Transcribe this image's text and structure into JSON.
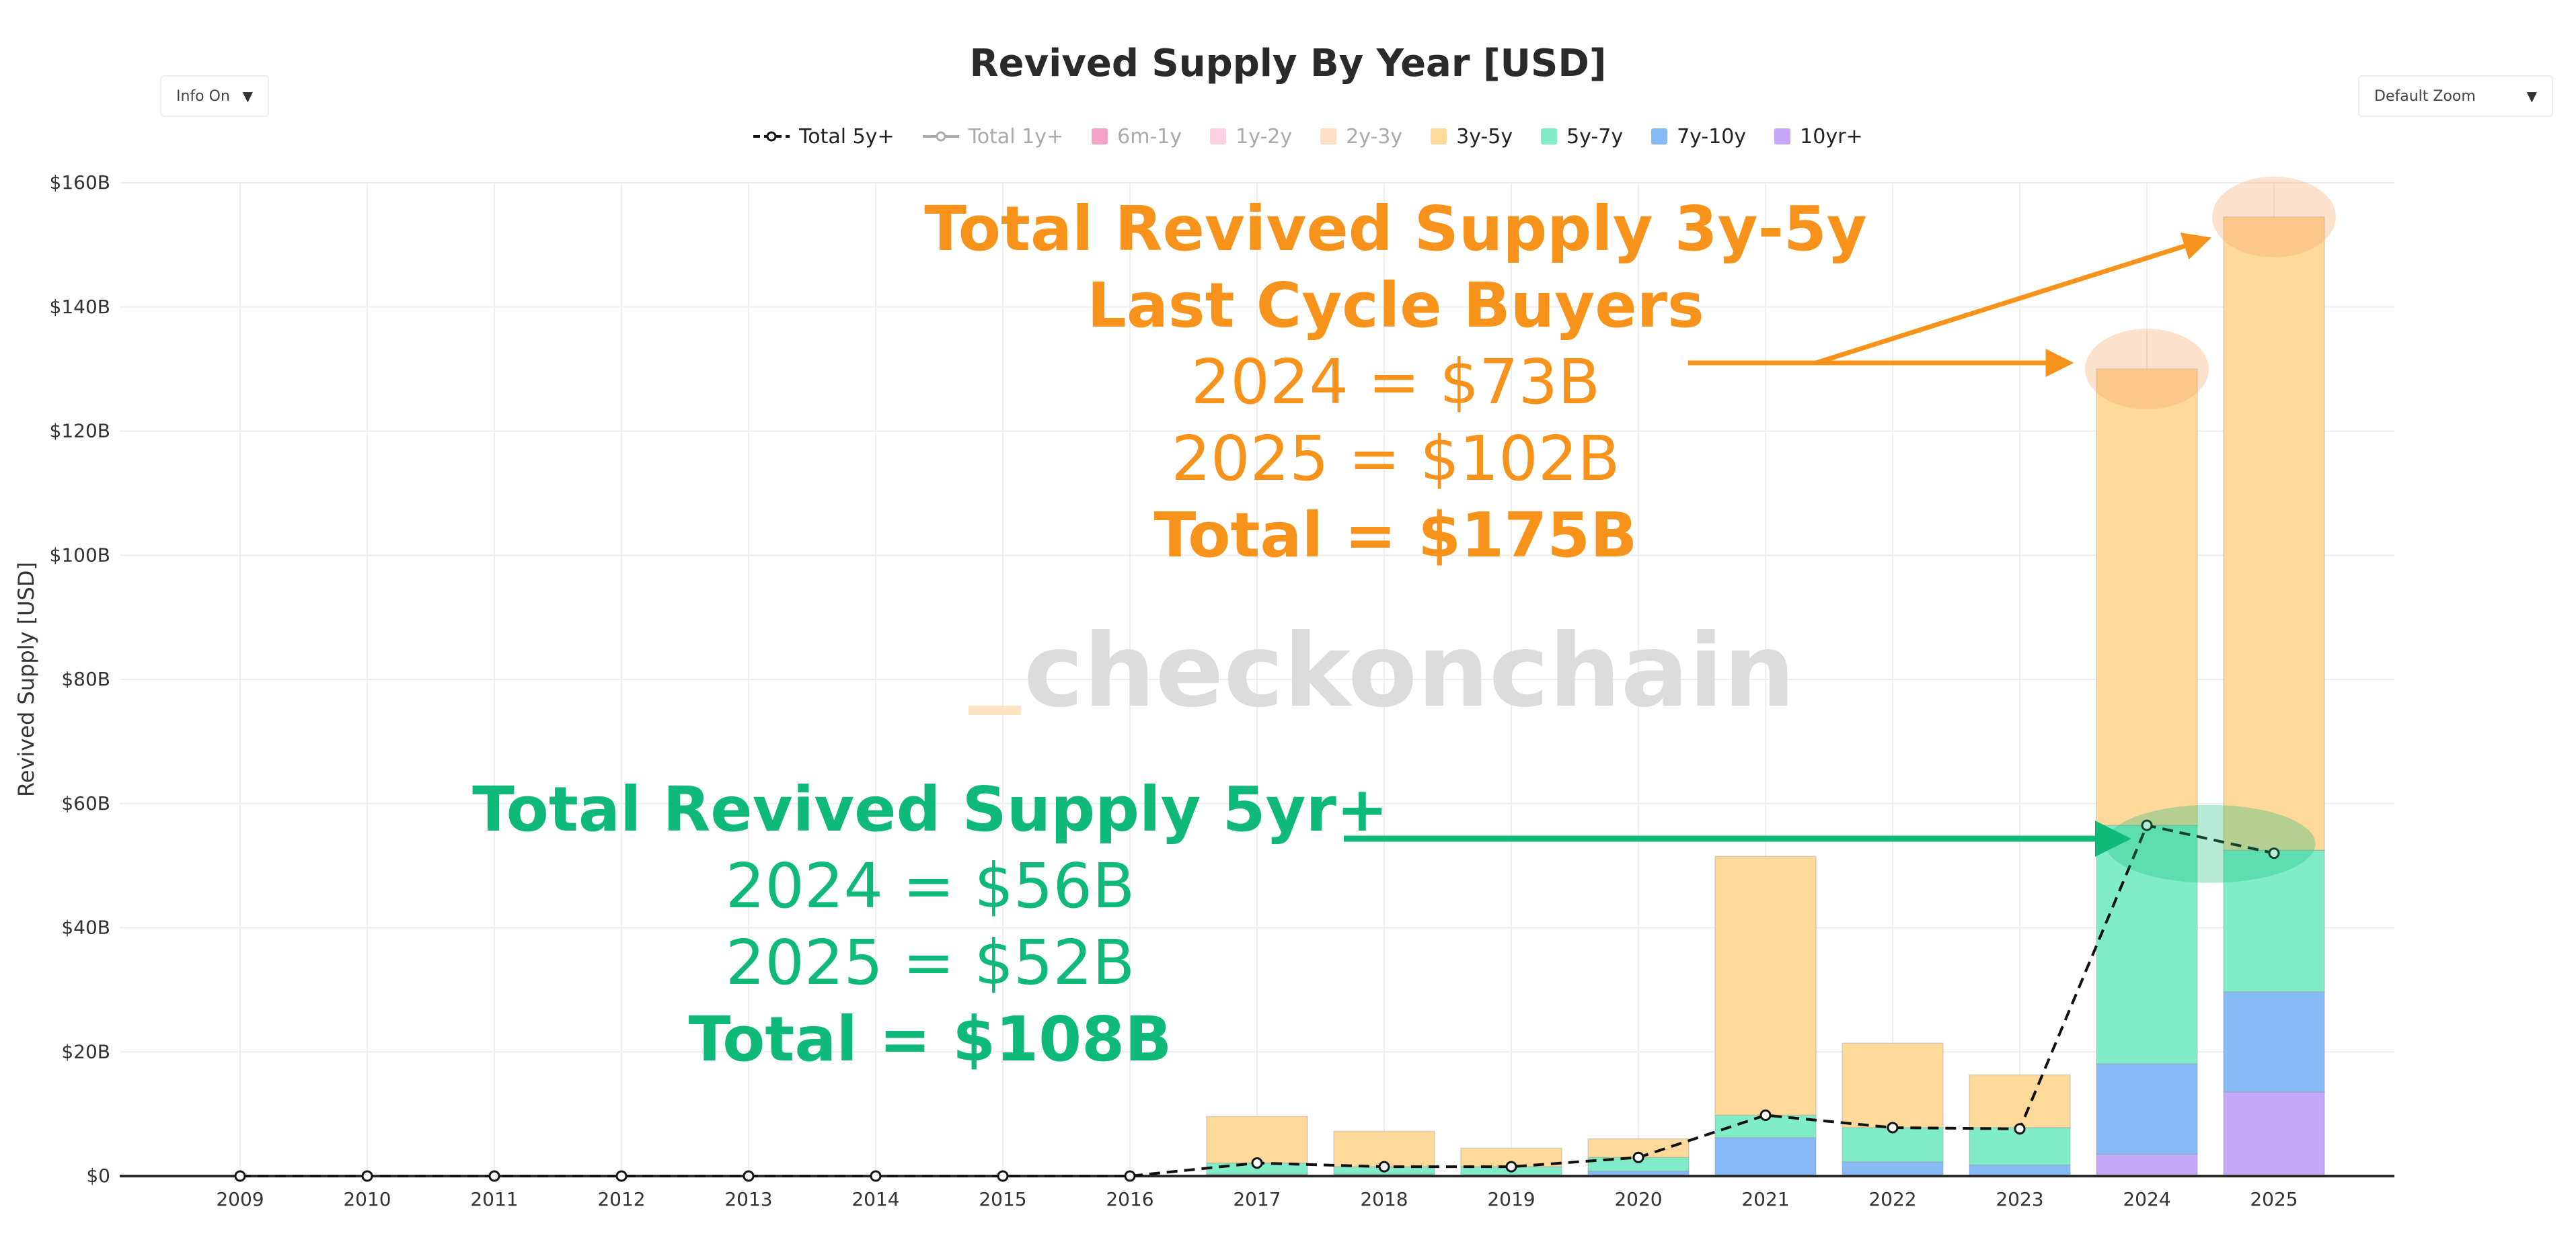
{
  "controls": {
    "info_label": "Info On",
    "zoom_label": "Default Zoom"
  },
  "colors": {
    "axis": "#2a2a2a",
    "grid": "#eeeeee",
    "orange": "#f7931a",
    "green": "#0fb97a",
    "watermark": "#dcdcdc",
    "watermark_accent": "#fde5c4"
  },
  "watermark": {
    "text": "checkonchain",
    "prefix": "_"
  },
  "annotations": {
    "orange": {
      "title1": "Total Revived Supply 3y-5y",
      "title2": "Last Cycle Buyers",
      "line1": "2024 = $73B",
      "line2": "2025 = $102B",
      "total": "Total = $175B"
    },
    "green": {
      "title": "Total Revived Supply 5yr+",
      "line1": "2024 = $56B",
      "line2": "2025 = $52B",
      "total": "Total = $108B"
    }
  },
  "chart_data": {
    "type": "bar",
    "title": "Revived Supply By Year [USD]",
    "ylabel": "Revived Supply [USD]",
    "xlabel": "",
    "ylim": [
      0,
      160
    ],
    "y_ticks": [
      0,
      20,
      40,
      60,
      80,
      100,
      120,
      140,
      160
    ],
    "y_tick_labels": [
      "$0",
      "$20B",
      "$40B",
      "$60B",
      "$80B",
      "$100B",
      "$120B",
      "$140B",
      "$160B"
    ],
    "grid": true,
    "legend_position": "top-center",
    "categories": [
      "2009",
      "2010",
      "2011",
      "2012",
      "2013",
      "2014",
      "2015",
      "2016",
      "2017",
      "2018",
      "2019",
      "2020",
      "2021",
      "2022",
      "2023",
      "2024",
      "2025"
    ],
    "series": [
      {
        "name": "10yr+",
        "kind": "bar",
        "color": "#c5a8f7",
        "values": [
          0,
          0,
          0,
          0,
          0,
          0,
          0,
          0,
          0,
          0,
          0,
          0,
          0,
          0,
          0,
          3.5,
          13.5
        ]
      },
      {
        "name": "7y-10y",
        "kind": "bar",
        "color": "#86b9f5",
        "values": [
          0,
          0,
          0,
          0,
          0,
          0,
          0,
          0,
          0.3,
          0.3,
          0.2,
          0.8,
          6.2,
          2.3,
          1.8,
          14.6,
          16.2
        ]
      },
      {
        "name": "5y-7y",
        "kind": "bar",
        "color": "#80ecc8",
        "values": [
          0,
          0,
          0,
          0,
          0,
          0,
          0,
          0,
          1.8,
          1.2,
          1.3,
          2.2,
          3.6,
          5.5,
          6.0,
          38.4,
          22.8
        ]
      },
      {
        "name": "3y-5y",
        "kind": "bar",
        "color": "#fdd99a",
        "values": [
          0,
          0,
          0,
          0,
          0,
          0,
          0,
          0,
          7.5,
          5.7,
          3.0,
          3.0,
          41.7,
          13.6,
          8.5,
          73.5,
          102.0
        ]
      },
      {
        "name": "Total 5y+",
        "kind": "line",
        "color": "#111111",
        "dash": true,
        "values": [
          0,
          0,
          0,
          0,
          0,
          0,
          0,
          0,
          2.1,
          1.5,
          1.5,
          3.0,
          9.8,
          7.8,
          7.6,
          56.5,
          52.0
        ]
      }
    ],
    "legend": [
      {
        "name": "Total 5y+",
        "kind": "line-marker",
        "color": "#111111",
        "active": true
      },
      {
        "name": "Total 1y+",
        "kind": "line-marker",
        "color": "#aaaaaa",
        "active": false
      },
      {
        "name": "6m-1y",
        "kind": "square",
        "color": "#f5a3c4",
        "active": false
      },
      {
        "name": "1y-2y",
        "kind": "square",
        "color": "#fbd0e0",
        "active": false
      },
      {
        "name": "2y-3y",
        "kind": "square",
        "color": "#fde0c6",
        "active": false
      },
      {
        "name": "3y-5y",
        "kind": "square",
        "color": "#fdd99a",
        "active": true
      },
      {
        "name": "5y-7y",
        "kind": "square",
        "color": "#80ecc8",
        "active": true
      },
      {
        "name": "7y-10y",
        "kind": "square",
        "color": "#86b9f5",
        "active": true
      },
      {
        "name": "10yr+",
        "kind": "square",
        "color": "#c5a8f7",
        "active": true
      }
    ]
  }
}
